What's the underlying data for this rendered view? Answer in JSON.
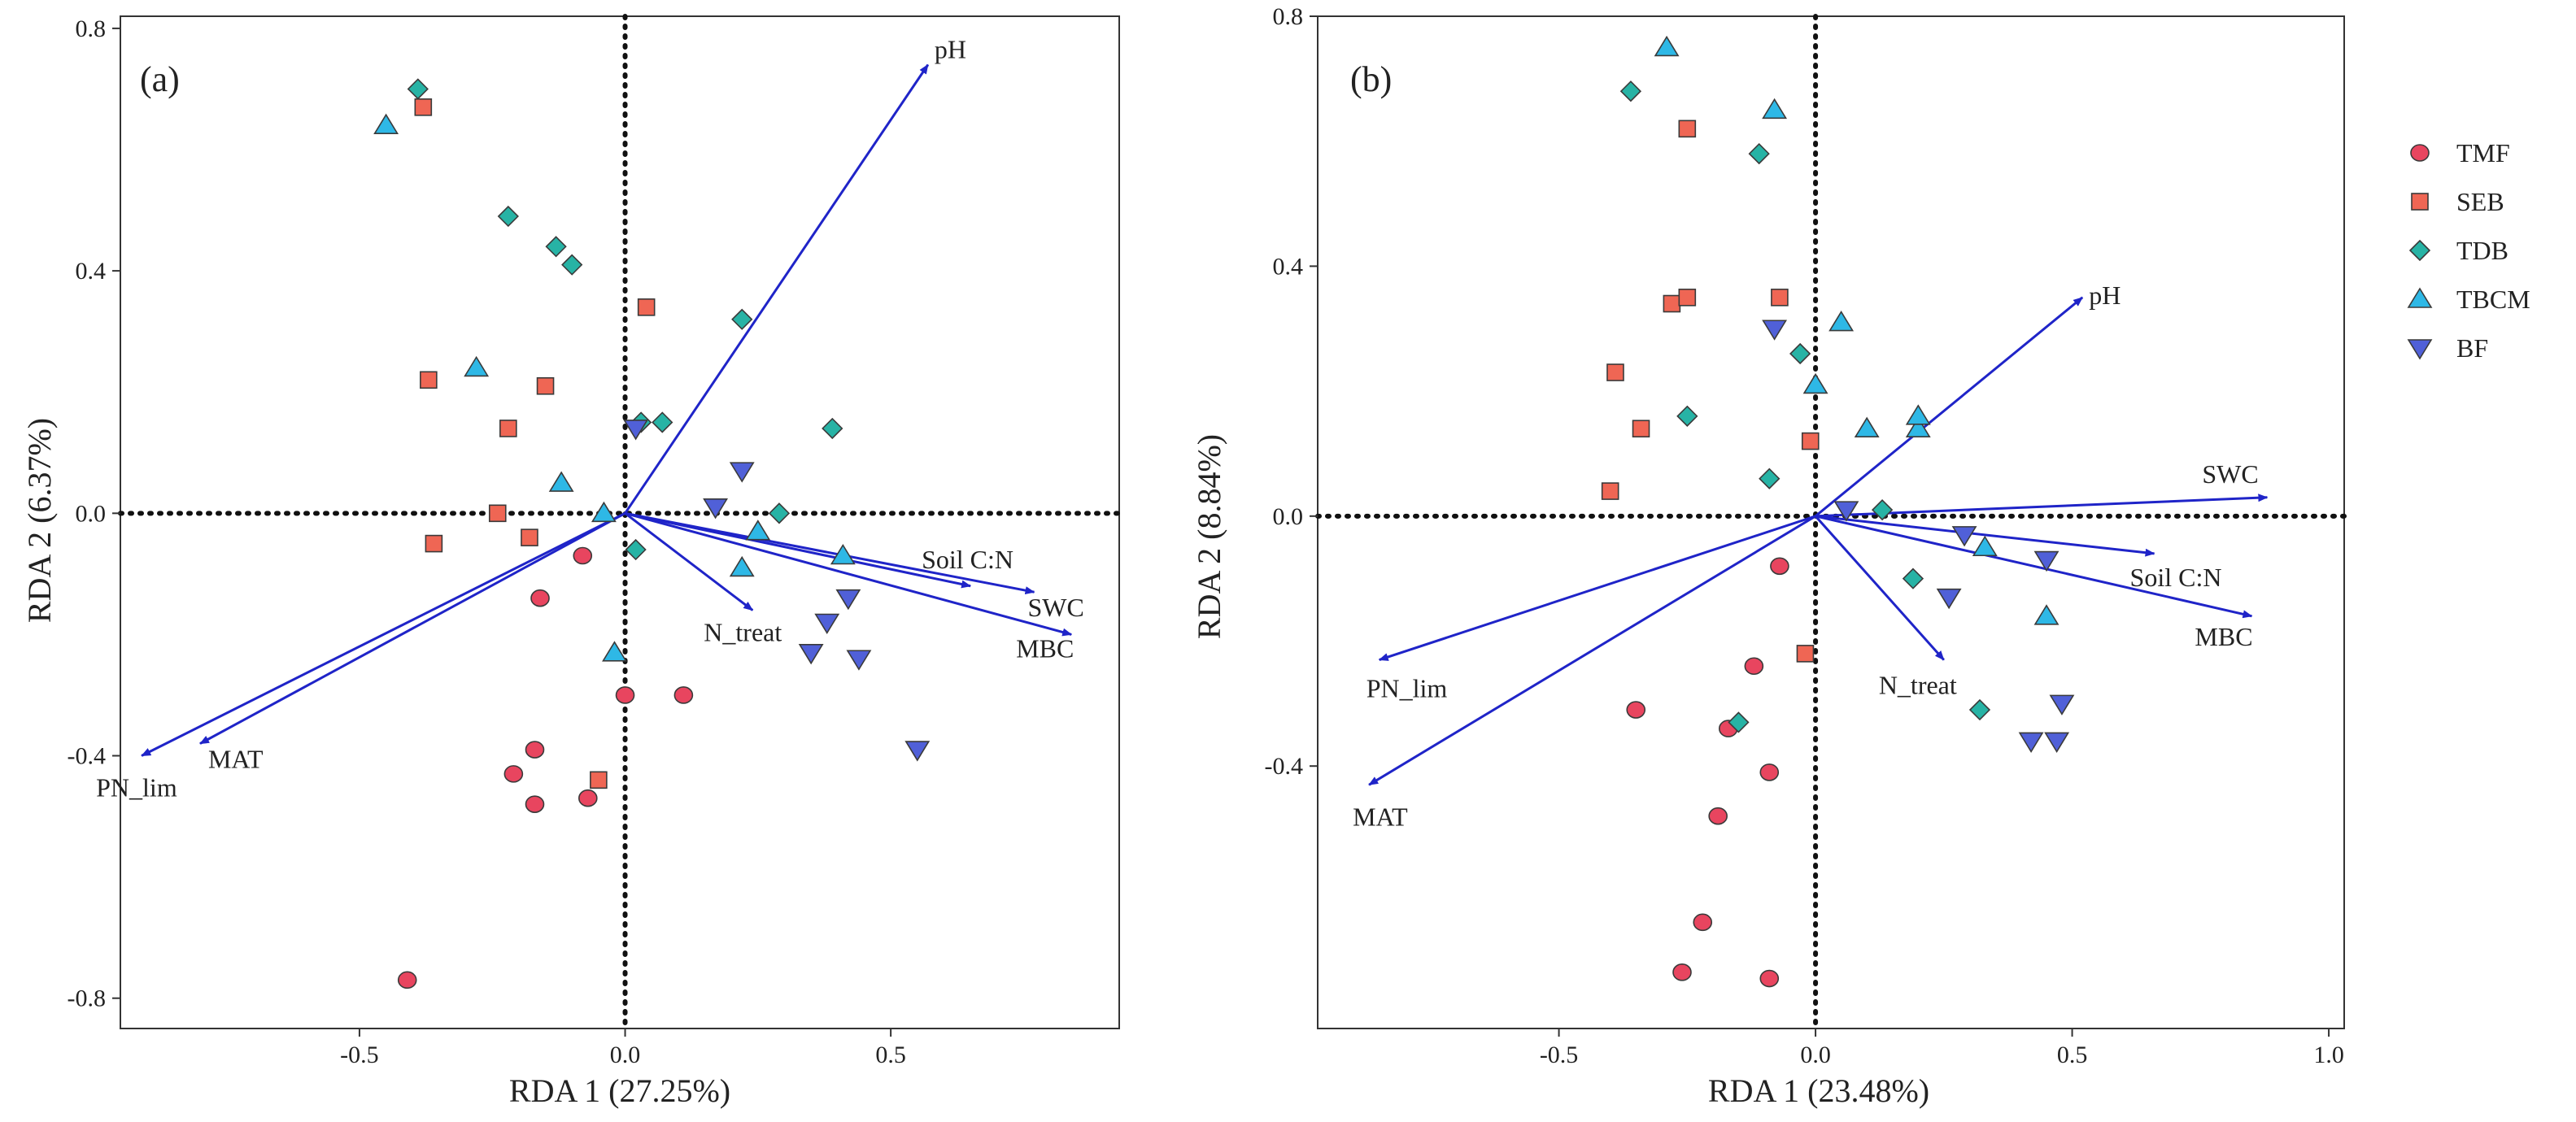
{
  "chart_data": [
    {
      "panel_label": "(a)",
      "type": "scatter",
      "xlabel": "RDA 1 (27.25%)",
      "ylabel": "RDA 2 (6.37%)",
      "xlim": [
        -0.95,
        0.93
      ],
      "ylim": [
        -0.85,
        0.82
      ],
      "xticks": [
        -0.5,
        0.0,
        0.5
      ],
      "xtick_labels": [
        "-0.5",
        "0.0",
        "0.5"
      ],
      "yticks": [
        -0.8,
        -0.4,
        0.0,
        0.4,
        0.8
      ],
      "ytick_labels": [
        "-0.8",
        "-0.4",
        "0.0",
        "0.4",
        "0.8"
      ],
      "arrows": [
        {
          "label": "pH",
          "x": 0.57,
          "y": 0.74
        },
        {
          "label": "Soil C:N",
          "x": 0.65,
          "y": -0.12
        },
        {
          "label": "SWC",
          "x": 0.77,
          "y": -0.13
        },
        {
          "label": "MBC",
          "x": 0.84,
          "y": -0.2
        },
        {
          "label": "N_treat",
          "x": 0.24,
          "y": -0.16
        },
        {
          "label": "MAT",
          "x": -0.8,
          "y": -0.38
        },
        {
          "label": "PN_lim",
          "x": -0.91,
          "y": -0.4
        }
      ],
      "series": [
        {
          "name": "TMF",
          "points": [
            [
              -0.41,
              -0.77
            ],
            [
              -0.16,
              -0.14
            ],
            [
              -0.17,
              -0.39
            ],
            [
              -0.21,
              -0.43
            ],
            [
              -0.17,
              -0.48
            ],
            [
              -0.07,
              -0.47
            ],
            [
              -0.08,
              -0.07
            ],
            [
              0.0,
              -0.3
            ],
            [
              0.11,
              -0.3
            ]
          ]
        },
        {
          "name": "SEB",
          "points": [
            [
              -0.38,
              0.67
            ],
            [
              -0.37,
              0.22
            ],
            [
              -0.15,
              0.21
            ],
            [
              -0.22,
              0.14
            ],
            [
              0.04,
              0.34
            ],
            [
              -0.24,
              0.0
            ],
            [
              -0.36,
              -0.05
            ],
            [
              -0.18,
              -0.04
            ],
            [
              -0.05,
              -0.44
            ]
          ]
        },
        {
          "name": "TDB",
          "points": [
            [
              -0.39,
              0.7
            ],
            [
              -0.22,
              0.49
            ],
            [
              -0.13,
              0.44
            ],
            [
              -0.1,
              0.41
            ],
            [
              0.22,
              0.32
            ],
            [
              0.03,
              0.15
            ],
            [
              0.07,
              0.15
            ],
            [
              0.39,
              0.14
            ],
            [
              0.29,
              0.0
            ],
            [
              0.02,
              -0.06
            ]
          ]
        },
        {
          "name": "TBCM",
          "points": [
            [
              -0.45,
              0.64
            ],
            [
              -0.28,
              0.24
            ],
            [
              -0.12,
              0.05
            ],
            [
              -0.04,
              0.0
            ],
            [
              0.22,
              -0.09
            ],
            [
              0.25,
              -0.03
            ],
            [
              -0.02,
              -0.23
            ],
            [
              0.41,
              -0.07
            ]
          ]
        },
        {
          "name": "BF",
          "points": [
            [
              0.02,
              0.14
            ],
            [
              0.22,
              0.07
            ],
            [
              0.17,
              0.01
            ],
            [
              0.38,
              -0.18
            ],
            [
              0.42,
              -0.14
            ],
            [
              0.35,
              -0.23
            ],
            [
              0.44,
              -0.24
            ],
            [
              0.55,
              -0.39
            ]
          ]
        }
      ]
    },
    {
      "panel_label": "(b)",
      "type": "scatter",
      "xlabel": "RDA 1 (23.48%)",
      "ylabel": "RDA 2 (8.84%)",
      "xlim": [
        -0.97,
        1.03
      ],
      "ylim": [
        -0.82,
        0.8
      ],
      "xticks": [
        -0.5,
        0.0,
        0.5,
        1.0
      ],
      "xtick_labels": [
        "-0.5",
        "0.0",
        "0.5",
        "1.0"
      ],
      "yticks": [
        -0.4,
        0.0,
        0.4,
        0.8
      ],
      "ytick_labels": [
        "-0.4",
        "0.0",
        "0.4",
        "0.8"
      ],
      "arrows": [
        {
          "label": "pH",
          "x": 0.52,
          "y": 0.35
        },
        {
          "label": "SWC",
          "x": 0.88,
          "y": 0.03
        },
        {
          "label": "Soil C:N",
          "x": 0.66,
          "y": -0.06
        },
        {
          "label": "MBC",
          "x": 0.85,
          "y": -0.16
        },
        {
          "label": "N_treat",
          "x": 0.25,
          "y": -0.23
        },
        {
          "label": "PN_lim",
          "x": -0.85,
          "y": -0.23
        },
        {
          "label": "MAT",
          "x": -0.87,
          "y": -0.43
        }
      ],
      "series": [
        {
          "name": "TMF",
          "points": [
            [
              -0.07,
              -0.08
            ],
            [
              -0.12,
              -0.24
            ],
            [
              -0.35,
              -0.31
            ],
            [
              -0.17,
              -0.34
            ],
            [
              -0.09,
              -0.41
            ],
            [
              -0.19,
              -0.48
            ],
            [
              -0.22,
              -0.65
            ],
            [
              -0.26,
              -0.73
            ],
            [
              -0.09,
              -0.74
            ]
          ]
        },
        {
          "name": "SEB",
          "points": [
            [
              -0.25,
              0.62
            ],
            [
              -0.28,
              0.34
            ],
            [
              -0.25,
              0.35
            ],
            [
              -0.07,
              0.35
            ],
            [
              -0.39,
              0.23
            ],
            [
              -0.34,
              0.14
            ],
            [
              -0.01,
              0.12
            ],
            [
              -0.4,
              0.04
            ],
            [
              -0.02,
              -0.22
            ]
          ]
        },
        {
          "name": "TDB",
          "points": [
            [
              -0.36,
              0.68
            ],
            [
              -0.11,
              0.58
            ],
            [
              -0.03,
              0.26
            ],
            [
              -0.25,
              0.16
            ],
            [
              -0.09,
              0.06
            ],
            [
              0.13,
              0.01
            ],
            [
              0.19,
              -0.1
            ],
            [
              0.32,
              -0.31
            ],
            [
              -0.15,
              -0.33
            ]
          ]
        },
        {
          "name": "TBCM",
          "points": [
            [
              -0.29,
              0.75
            ],
            [
              -0.08,
              0.65
            ],
            [
              0.05,
              0.31
            ],
            [
              0.0,
              0.21
            ],
            [
              0.1,
              0.14
            ],
            [
              0.2,
              0.14
            ],
            [
              0.2,
              0.16
            ],
            [
              0.33,
              -0.05
            ],
            [
              0.45,
              -0.16
            ]
          ]
        },
        {
          "name": "BF",
          "points": [
            [
              -0.08,
              0.3
            ],
            [
              0.06,
              0.01
            ],
            [
              0.29,
              -0.03
            ],
            [
              0.26,
              -0.13
            ],
            [
              0.45,
              -0.07
            ],
            [
              0.48,
              -0.3
            ],
            [
              0.47,
              -0.36
            ],
            [
              0.42,
              -0.36
            ]
          ]
        }
      ]
    }
  ],
  "legend": {
    "items": [
      {
        "name": "TMF",
        "marker": "circle",
        "color": "#e8455f"
      },
      {
        "name": "SEB",
        "marker": "square",
        "color": "#ef6654"
      },
      {
        "name": "TDB",
        "marker": "diamond",
        "color": "#27b3a5"
      },
      {
        "name": "TBCM",
        "marker": "triangle-up",
        "color": "#2eb8e6"
      },
      {
        "name": "BF",
        "marker": "triangle-down",
        "color": "#5060d8"
      }
    ]
  },
  "arrow_color": "#1f24c8"
}
